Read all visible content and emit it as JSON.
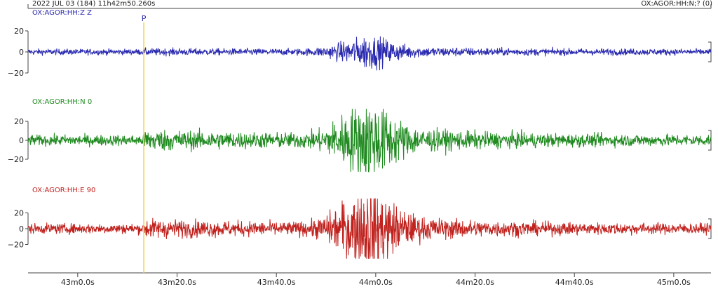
{
  "header": {
    "datetime": "2022 JUL 03 (184)  11h42m50.260s",
    "right_label": "OX:AGOR:HH:N;? (0)"
  },
  "pick": {
    "label": "P",
    "time_s": 23.3,
    "color": "#f2d24a"
  },
  "chart_data": {
    "type": "line",
    "x_unit": "s after 11h42m50.260s",
    "xlim": [
      0,
      137.5
    ],
    "x_ticks": [
      {
        "t": 10,
        "label": "43m0.0s"
      },
      {
        "t": 30,
        "label": "43m20.0s"
      },
      {
        "t": 50,
        "label": "43m40.0s"
      },
      {
        "t": 70,
        "label": "44m0.0s"
      },
      {
        "t": 90,
        "label": "44m20.0s"
      },
      {
        "t": 110,
        "label": "44m40.0s"
      },
      {
        "t": 130,
        "label": "45m0.0s"
      }
    ],
    "y_ticks": [
      20,
      0,
      -20
    ],
    "series": [
      {
        "name": "OX:AGOR:HH:Z Z",
        "color": "#2a2ab0",
        "ylim": [
          -30,
          30
        ],
        "noise": 2.0,
        "event": 7.5,
        "p_step": 0.5
      },
      {
        "name": "OX:AGOR:HH:N 0",
        "color": "#1f8a1f",
        "ylim": [
          -35,
          35
        ],
        "noise": 4.0,
        "event": 22.0,
        "p_step": 4.5
      },
      {
        "name": "OX:AGOR:HH:E 90",
        "color": "#c0221e",
        "ylim": [
          -40,
          40
        ],
        "noise": 4.5,
        "event": 28.0,
        "p_step": 4.5
      }
    ]
  }
}
